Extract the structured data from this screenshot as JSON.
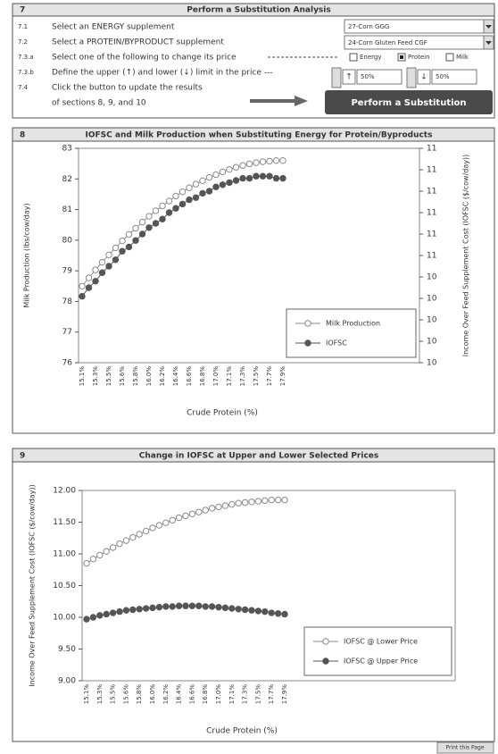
{
  "panel": {
    "number": "7",
    "title": "Perform a Substitution Analysis",
    "steps": [
      {
        "num": "7.1",
        "text": "Select an ENERGY supplement"
      },
      {
        "num": "7.2",
        "text": "Select a PROTEIN/BYPRODUCT supplement"
      },
      {
        "num": "7.3.a",
        "text": "Select one of the following to change its price"
      },
      {
        "num": "7.3.b",
        "text": "Define the upper (↑) and lower (↓) limit in the price ---"
      },
      {
        "num": "7.4",
        "text": "Click the button to update the results"
      },
      {
        "text": "of sections 8, 9, and 10"
      }
    ],
    "energy_select": "27-Corn GGG",
    "protein_select": "24-Corn Gluten Feed CGF",
    "options": [
      "Energy",
      "Protein",
      "Milk"
    ],
    "selected_option": "Protein",
    "upper_symbol": "↑",
    "upper": "50%",
    "lower_symbol": "↓",
    "lower": "50%",
    "button": "Perform a Substitution",
    "print_button": "Print this Page"
  },
  "chart_data": [
    {
      "type": "line",
      "number": "8",
      "title": "IOFSC and Milk Production when Substituting Energy for Protein/Byproducts",
      "xlabel": "Crude Protein (%)",
      "ylabel": "Milk Production (lbs/cow/day)",
      "y2label": "Income Over Feed Supplement Cost (IOFSC ($/cow/day))",
      "categories": [
        "15.1%",
        null,
        "15.3%",
        null,
        "15.5%",
        null,
        "15.6%",
        null,
        "15.8%",
        null,
        "16.0%",
        null,
        "16.2%",
        null,
        "16.4%",
        null,
        "16.6%",
        null,
        "16.8%",
        null,
        "17.0%",
        null,
        "17.1%",
        null,
        "17.3%",
        null,
        "17.5%",
        null,
        "17.7%",
        null,
        "17.9%"
      ],
      "ylim": [
        76,
        83
      ],
      "yticks": [
        76,
        77,
        78,
        79,
        80,
        81,
        82,
        83
      ],
      "y2lim": [
        10,
        11
      ],
      "y2ticks": [
        {
          "value": 10.0,
          "label": "10"
        },
        {
          "value": 10.1,
          "label": "10"
        },
        {
          "value": 10.2,
          "label": "10"
        },
        {
          "value": 10.3,
          "label": "10"
        },
        {
          "value": 10.4,
          "label": "10"
        },
        {
          "value": 10.5,
          "label": "11"
        },
        {
          "value": 10.6,
          "label": "11"
        },
        {
          "value": 10.7,
          "label": "11"
        },
        {
          "value": 10.8,
          "label": "11"
        },
        {
          "value": 10.9,
          "label": "11"
        },
        {
          "value": 11.0,
          "label": "11"
        }
      ],
      "legend": "lower right",
      "series": [
        {
          "name": "Milk Production",
          "color": "#8a8a8a",
          "marker": "open",
          "values": [
            78.5,
            78.77,
            79.03,
            79.28,
            79.52,
            79.75,
            79.98,
            80.19,
            80.39,
            80.59,
            80.78,
            80.96,
            81.12,
            81.28,
            81.44,
            81.58,
            81.71,
            81.83,
            81.94,
            82.05,
            82.14,
            82.23,
            82.31,
            82.38,
            82.44,
            82.49,
            82.53,
            82.56,
            82.58,
            82.6,
            82.6
          ]
        },
        {
          "name": "IOFSC",
          "color": "#555555",
          "marker": "filled",
          "axis": "y2",
          "values": [
            10.31,
            10.35,
            10.38,
            10.42,
            10.45,
            10.48,
            10.52,
            10.54,
            10.57,
            10.6,
            10.63,
            10.65,
            10.67,
            10.7,
            10.72,
            10.74,
            10.76,
            10.77,
            10.79,
            10.8,
            10.82,
            10.83,
            10.84,
            10.85,
            10.86,
            10.86,
            10.87,
            10.87,
            10.87,
            10.86,
            10.86
          ]
        }
      ]
    },
    {
      "type": "line",
      "number": "9",
      "title": "Change in IOFSC at Upper and Lower Selected Prices",
      "xlabel": "Crude Protein (%)",
      "ylabel": "Income Over Feed Supplement Cost (IOFSC ($/cow/day))",
      "categories": [
        "15.1%",
        null,
        "15.3%",
        null,
        "15.5%",
        null,
        "15.6%",
        null,
        "15.8%",
        null,
        "16.0%",
        null,
        "16.2%",
        null,
        "16.4%",
        null,
        "16.6%",
        null,
        "16.8%",
        null,
        "17.0%",
        null,
        "17.1%",
        null,
        "17.3%",
        null,
        "17.5%",
        null,
        "17.7%",
        null,
        "17.9%"
      ],
      "ylim": [
        9,
        12
      ],
      "yticks": [
        {
          "value": 9,
          "label": "9.00"
        },
        {
          "value": 9.5,
          "label": "9.50"
        },
        {
          "value": 10,
          "label": "10.00"
        },
        {
          "value": 10.5,
          "label": "10.50"
        },
        {
          "value": 11,
          "label": "11.00"
        },
        {
          "value": 11.5,
          "label": "11.50"
        },
        {
          "value": 12,
          "label": "12.00"
        }
      ],
      "legend": "lower right",
      "series": [
        {
          "name": "IOFSC @ Lower Price",
          "color": "#8a8a8a",
          "marker": "open",
          "values": [
            10.85,
            10.92,
            10.98,
            11.04,
            11.1,
            11.16,
            11.21,
            11.26,
            11.31,
            11.36,
            11.41,
            11.45,
            11.49,
            11.53,
            11.57,
            11.6,
            11.63,
            11.66,
            11.69,
            11.72,
            11.74,
            11.76,
            11.78,
            11.8,
            11.81,
            11.82,
            11.83,
            11.84,
            11.85,
            11.85,
            11.85
          ]
        },
        {
          "name": "IOFSC @ Upper Price",
          "color": "#555555",
          "marker": "filled",
          "values": [
            9.97,
            10.0,
            10.03,
            10.05,
            10.07,
            10.09,
            10.11,
            10.12,
            10.13,
            10.14,
            10.15,
            10.16,
            10.17,
            10.17,
            10.18,
            10.18,
            10.18,
            10.18,
            10.17,
            10.17,
            10.16,
            10.15,
            10.14,
            10.13,
            10.12,
            10.11,
            10.1,
            10.09,
            10.07,
            10.06,
            10.05
          ]
        }
      ]
    }
  ]
}
